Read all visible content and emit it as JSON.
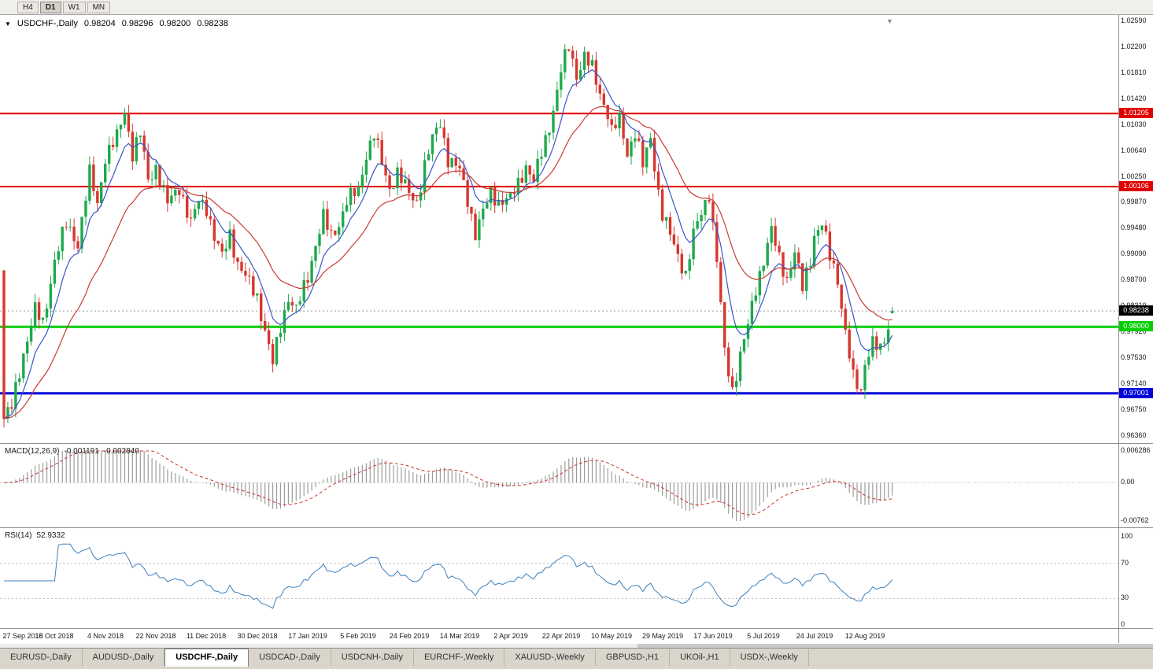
{
  "toolbar": {
    "timeframes": [
      {
        "label": "H4",
        "active": false
      },
      {
        "label": "D1",
        "active": true
      },
      {
        "label": "W1",
        "active": false
      },
      {
        "label": "MN",
        "active": false
      }
    ]
  },
  "chart_header": {
    "symbol_label": "USDCHF-,Daily",
    "open": "0.98204",
    "high": "0.98296",
    "low": "0.98200",
    "close": "0.98238"
  },
  "indicators": {
    "macd_label": "MACD(12,26,9)",
    "macd_value": "-0.001191",
    "macd_signal_value": "-0.002840",
    "rsi_label": "RSI(14)",
    "rsi_value": "52.9332"
  },
  "axes": {
    "price_ticks": [
      "1.02590",
      "1.02200",
      "1.01810",
      "1.01420",
      "1.01030",
      "1.00640",
      "1.00250",
      "0.99870",
      "0.99480",
      "0.99090",
      "0.98700",
      "0.98310",
      "0.97920",
      "0.97530",
      "0.97140",
      "0.96750",
      "0.96360"
    ],
    "macd_ticks": [
      "0.006286",
      "0.00",
      "-0.00762"
    ],
    "rsi_ticks": [
      "100",
      "70",
      "30",
      "0"
    ],
    "date_labels": [
      "27 Sep 2018",
      "16 Oct 2018",
      "4 Nov 2018",
      "22 Nov 2018",
      "11 Dec 2018",
      "30 Dec 2018",
      "17 Jan 2019",
      "5 Feb 2019",
      "24 Feb 2019",
      "14 Mar 2019",
      "2 Apr 2019",
      "22 Apr 2019",
      "10 May 2019",
      "29 May 2019",
      "17 Jun 2019",
      "5 Jul 2019",
      "24 Jul 2019",
      "12 Aug 2019"
    ]
  },
  "levels": {
    "resistance1": {
      "price": 1.01205,
      "label": "1.01205",
      "color": "#E00000",
      "width": 2
    },
    "resistance2": {
      "price": 1.00106,
      "label": "1.00106",
      "color": "#E00000",
      "width": 2
    },
    "support_green": {
      "price": 0.98,
      "label": "0.98000",
      "color": "#00CE00",
      "width": 3
    },
    "support_blue": {
      "price": 0.97001,
      "label": "0.97001",
      "color": "#0000D8",
      "width": 3
    },
    "current": {
      "price": 0.98238,
      "label": "0.98238",
      "color": "#000000",
      "width": 1
    }
  },
  "tabs": [
    {
      "label": "EURUSD-,Daily",
      "active": false
    },
    {
      "label": "AUDUSD-,Daily",
      "active": false
    },
    {
      "label": "USDCHF-,Daily",
      "active": true
    },
    {
      "label": "USDCAD-,Daily",
      "active": false
    },
    {
      "label": "USDCNH-,Daily",
      "active": false
    },
    {
      "label": "EURCHF-,Weekly",
      "active": false
    },
    {
      "label": "XAUUSD-,Weekly",
      "active": false
    },
    {
      "label": "GBPUSD-,H1",
      "active": false
    },
    {
      "label": "UKOil-,H1",
      "active": false
    },
    {
      "label": "USDX-,Weekly",
      "active": false
    }
  ],
  "colors": {
    "candle_up": "#1EA94C",
    "candle_down": "#D6372E",
    "ma_fast": "#3A55C8",
    "ma_slow": "#C83A32",
    "macd_hist": "#9C9C9C",
    "macd_signal": "#C8352C",
    "rsi_line": "#3E7FBE",
    "current_line": "#9A9A9A"
  },
  "chart_data": {
    "type": "candlestick",
    "symbol": "USDCHF",
    "timeframe": "Daily",
    "title": "USDCHF-,Daily",
    "bar_count": 229,
    "first_open": 0.9885,
    "last_ohlc": {
      "open": 0.98204,
      "high": 0.98296,
      "low": 0.982,
      "close": 0.98238
    },
    "y_range": [
      0.9636,
      1.0259
    ],
    "horizontal_levels": [
      1.01205,
      1.00106,
      0.98,
      0.97001
    ],
    "label_indices": [
      0,
      13,
      26,
      39,
      52,
      65,
      78,
      91,
      104,
      117,
      130,
      143,
      156,
      169,
      182,
      195,
      208,
      221
    ],
    "price_path": [
      [
        0,
        0.9662
      ],
      [
        2,
        0.968
      ],
      [
        5,
        0.976
      ],
      [
        8,
        0.9825
      ],
      [
        10,
        0.9805
      ],
      [
        13,
        0.99
      ],
      [
        16,
        0.9955
      ],
      [
        19,
        0.9925
      ],
      [
        22,
        1.003
      ],
      [
        24,
        0.9985
      ],
      [
        26,
        1.0055
      ],
      [
        29,
        1.0085
      ],
      [
        31,
        1.0125
      ],
      [
        33,
        1.006
      ],
      [
        35,
        1.009
      ],
      [
        37,
        1.002
      ],
      [
        39,
        1.004
      ],
      [
        42,
        0.9985
      ],
      [
        45,
        1.001
      ],
      [
        48,
        0.9955
      ],
      [
        50,
        0.999
      ],
      [
        52,
        0.998
      ],
      [
        54,
        0.9935
      ],
      [
        56,
        0.9905
      ],
      [
        58,
        0.994
      ],
      [
        60,
        0.9895
      ],
      [
        62,
        0.9875
      ],
      [
        65,
        0.9845
      ],
      [
        67,
        0.9795
      ],
      [
        69,
        0.9745
      ],
      [
        71,
        0.98
      ],
      [
        73,
        0.9845
      ],
      [
        75,
        0.9825
      ],
      [
        78,
        0.9875
      ],
      [
        80,
        0.9925
      ],
      [
        82,
        0.9965
      ],
      [
        84,
        0.9935
      ],
      [
        86,
        0.9955
      ],
      [
        88,
        0.999
      ],
      [
        91,
        1.0005
      ],
      [
        93,
        1.006
      ],
      [
        95,
        1.009
      ],
      [
        97,
        1.0045
      ],
      [
        99,
        1.0008
      ],
      [
        101,
        1.0032
      ],
      [
        104,
        1.0
      ],
      [
        106,
        0.9988
      ],
      [
        108,
        1.0042
      ],
      [
        110,
        1.0082
      ],
      [
        112,
        1.0108
      ],
      [
        114,
        1.0052
      ],
      [
        117,
        1.0035
      ],
      [
        119,
        0.9992
      ],
      [
        121,
        0.994
      ],
      [
        123,
        0.9972
      ],
      [
        125,
        1.0002
      ],
      [
        127,
        0.9988
      ],
      [
        130,
        0.9992
      ],
      [
        132,
        1.0016
      ],
      [
        134,
        1.0042
      ],
      [
        136,
        1.0018
      ],
      [
        138,
        1.0062
      ],
      [
        140,
        1.0102
      ],
      [
        142,
        1.0152
      ],
      [
        143,
        1.0185
      ],
      [
        145,
        1.0222
      ],
      [
        147,
        1.0178
      ],
      [
        149,
        1.0205
      ],
      [
        151,
        1.0188
      ],
      [
        153,
        1.0152
      ],
      [
        155,
        1.012
      ],
      [
        156,
        1.0092
      ],
      [
        158,
        1.0112
      ],
      [
        160,
        1.0062
      ],
      [
        162,
        1.0092
      ],
      [
        164,
        1.0042
      ],
      [
        166,
        1.0085
      ],
      [
        168,
        1.0002
      ],
      [
        169,
        0.9968
      ],
      [
        171,
        0.9938
      ],
      [
        173,
        0.9908
      ],
      [
        175,
        0.9878
      ],
      [
        177,
        0.9938
      ],
      [
        179,
        0.9972
      ],
      [
        181,
        1.0002
      ],
      [
        183,
        0.99
      ],
      [
        185,
        0.9762
      ],
      [
        187,
        0.9705
      ],
      [
        189,
        0.9758
      ],
      [
        191,
        0.9802
      ],
      [
        193,
        0.9858
      ],
      [
        195,
        0.9902
      ],
      [
        197,
        0.9945
      ],
      [
        199,
        0.9902
      ],
      [
        201,
        0.9872
      ],
      [
        203,
        0.9912
      ],
      [
        205,
        0.9858
      ],
      [
        207,
        0.9902
      ],
      [
        208,
        0.9938
      ],
      [
        210,
        0.9955
      ],
      [
        212,
        0.9905
      ],
      [
        214,
        0.9872
      ],
      [
        216,
        0.9792
      ],
      [
        218,
        0.9722
      ],
      [
        220,
        0.9702
      ],
      [
        221,
        0.9748
      ],
      [
        223,
        0.9778
      ],
      [
        225,
        0.9762
      ],
      [
        227,
        0.9798
      ],
      [
        228,
        0.98238
      ]
    ],
    "moving_averages": [
      {
        "period": 8,
        "color": "#3A55C8"
      },
      {
        "period": 24,
        "color": "#C83A32"
      }
    ],
    "macd": {
      "fast": 12,
      "slow": 26,
      "signal": 9,
      "range": [
        -0.00762,
        0.006286
      ]
    },
    "rsi": {
      "period": 14,
      "range": [
        0,
        100
      ],
      "guides": [
        70,
        30
      ]
    }
  }
}
